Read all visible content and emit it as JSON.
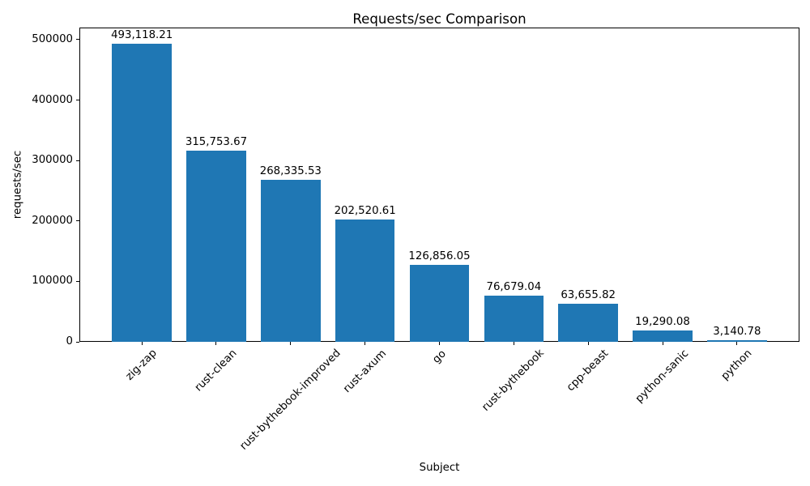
{
  "chart_data": {
    "type": "bar",
    "title": "Requests/sec Comparison",
    "xlabel": "Subject",
    "ylabel": "requests/sec",
    "categories": [
      "zig-zap",
      "rust-clean",
      "rust-bythebook-improved",
      "rust-axum",
      "go",
      "rust-bythebook",
      "cpp-beast",
      "python-sanic",
      "python"
    ],
    "values": [
      493118.21,
      315753.67,
      268335.53,
      202520.61,
      126856.05,
      76679.04,
      63655.82,
      19290.08,
      3140.78
    ],
    "value_labels": [
      "493,118.21",
      "315,753.67",
      "268,335.53",
      "202,520.61",
      "126,856.05",
      "76,679.04",
      "63,655.82",
      "19,290.08",
      "3,140.78"
    ],
    "y_ticks": [
      0,
      100000,
      200000,
      300000,
      400000,
      500000
    ],
    "y_tick_labels": [
      "0",
      "100000",
      "200000",
      "300000",
      "400000",
      "500000"
    ],
    "ylim": [
      0,
      520000
    ],
    "bar_color": "#1f77b4",
    "grid": false,
    "legend_position": "none",
    "x_tick_rotation": 45
  }
}
